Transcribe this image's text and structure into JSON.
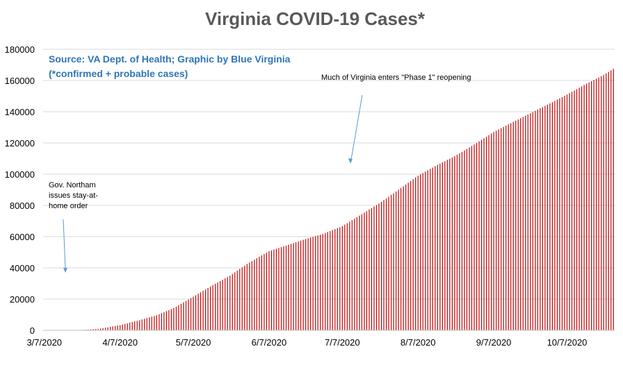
{
  "chart_data": {
    "type": "bar",
    "title": "Virginia COVID-19 Cases*",
    "source_lines": [
      "Source: VA Dept. of Health; Graphic by Blue Virginia",
      "(*confirmed + probable cases)"
    ],
    "xlabel": "",
    "ylabel": "",
    "ylim": [
      0,
      180000
    ],
    "yticks": [
      0,
      20000,
      40000,
      60000,
      80000,
      100000,
      120000,
      140000,
      160000,
      180000
    ],
    "xticks": [
      "3/7/2020",
      "4/7/2020",
      "5/7/2020",
      "6/7/2020",
      "7/7/2020",
      "8/7/2020",
      "9/7/2020",
      "10/7/2020"
    ],
    "grid": true,
    "bar_color": "#c00000",
    "series_start": "3/7/2020",
    "series_end": "10/26/2020",
    "anchors": [
      {
        "date": "3/7/2020",
        "value": 0
      },
      {
        "date": "3/15/2020",
        "value": 45
      },
      {
        "date": "3/22/2020",
        "value": 219
      },
      {
        "date": "3/29/2020",
        "value": 890
      },
      {
        "date": "4/7/2020",
        "value": 3300
      },
      {
        "date": "4/15/2020",
        "value": 6500
      },
      {
        "date": "4/22/2020",
        "value": 9600
      },
      {
        "date": "4/29/2020",
        "value": 14300
      },
      {
        "date": "5/7/2020",
        "value": 21500
      },
      {
        "date": "5/15/2020",
        "value": 29000
      },
      {
        "date": "5/22/2020",
        "value": 34950
      },
      {
        "date": "5/29/2020",
        "value": 42500
      },
      {
        "date": "6/7/2020",
        "value": 50700
      },
      {
        "date": "6/15/2020",
        "value": 54800
      },
      {
        "date": "6/22/2020",
        "value": 58500
      },
      {
        "date": "6/29/2020",
        "value": 61700
      },
      {
        "date": "7/7/2020",
        "value": 66700
      },
      {
        "date": "7/15/2020",
        "value": 74400
      },
      {
        "date": "7/22/2020",
        "value": 81200
      },
      {
        "date": "7/29/2020",
        "value": 88900
      },
      {
        "date": "8/7/2020",
        "value": 99000
      },
      {
        "date": "8/15/2020",
        "value": 106000
      },
      {
        "date": "8/22/2020",
        "value": 111500
      },
      {
        "date": "8/29/2020",
        "value": 118000
      },
      {
        "date": "9/7/2020",
        "value": 127000
      },
      {
        "date": "9/15/2020",
        "value": 133500
      },
      {
        "date": "9/22/2020",
        "value": 139000
      },
      {
        "date": "9/29/2020",
        "value": 144500
      },
      {
        "date": "10/7/2020",
        "value": 151000
      },
      {
        "date": "10/15/2020",
        "value": 158000
      },
      {
        "date": "10/22/2020",
        "value": 163500
      },
      {
        "date": "10/26/2020",
        "value": 167500
      }
    ],
    "annotations": [
      {
        "lines": [
          "Gov. Northam",
          "issues stay-at-",
          "home order"
        ],
        "date": "3/30/2020"
      },
      {
        "lines": [
          "Much of Virginia enters \"Phase 1\" reopening"
        ],
        "date": "5/15/2020"
      }
    ]
  }
}
